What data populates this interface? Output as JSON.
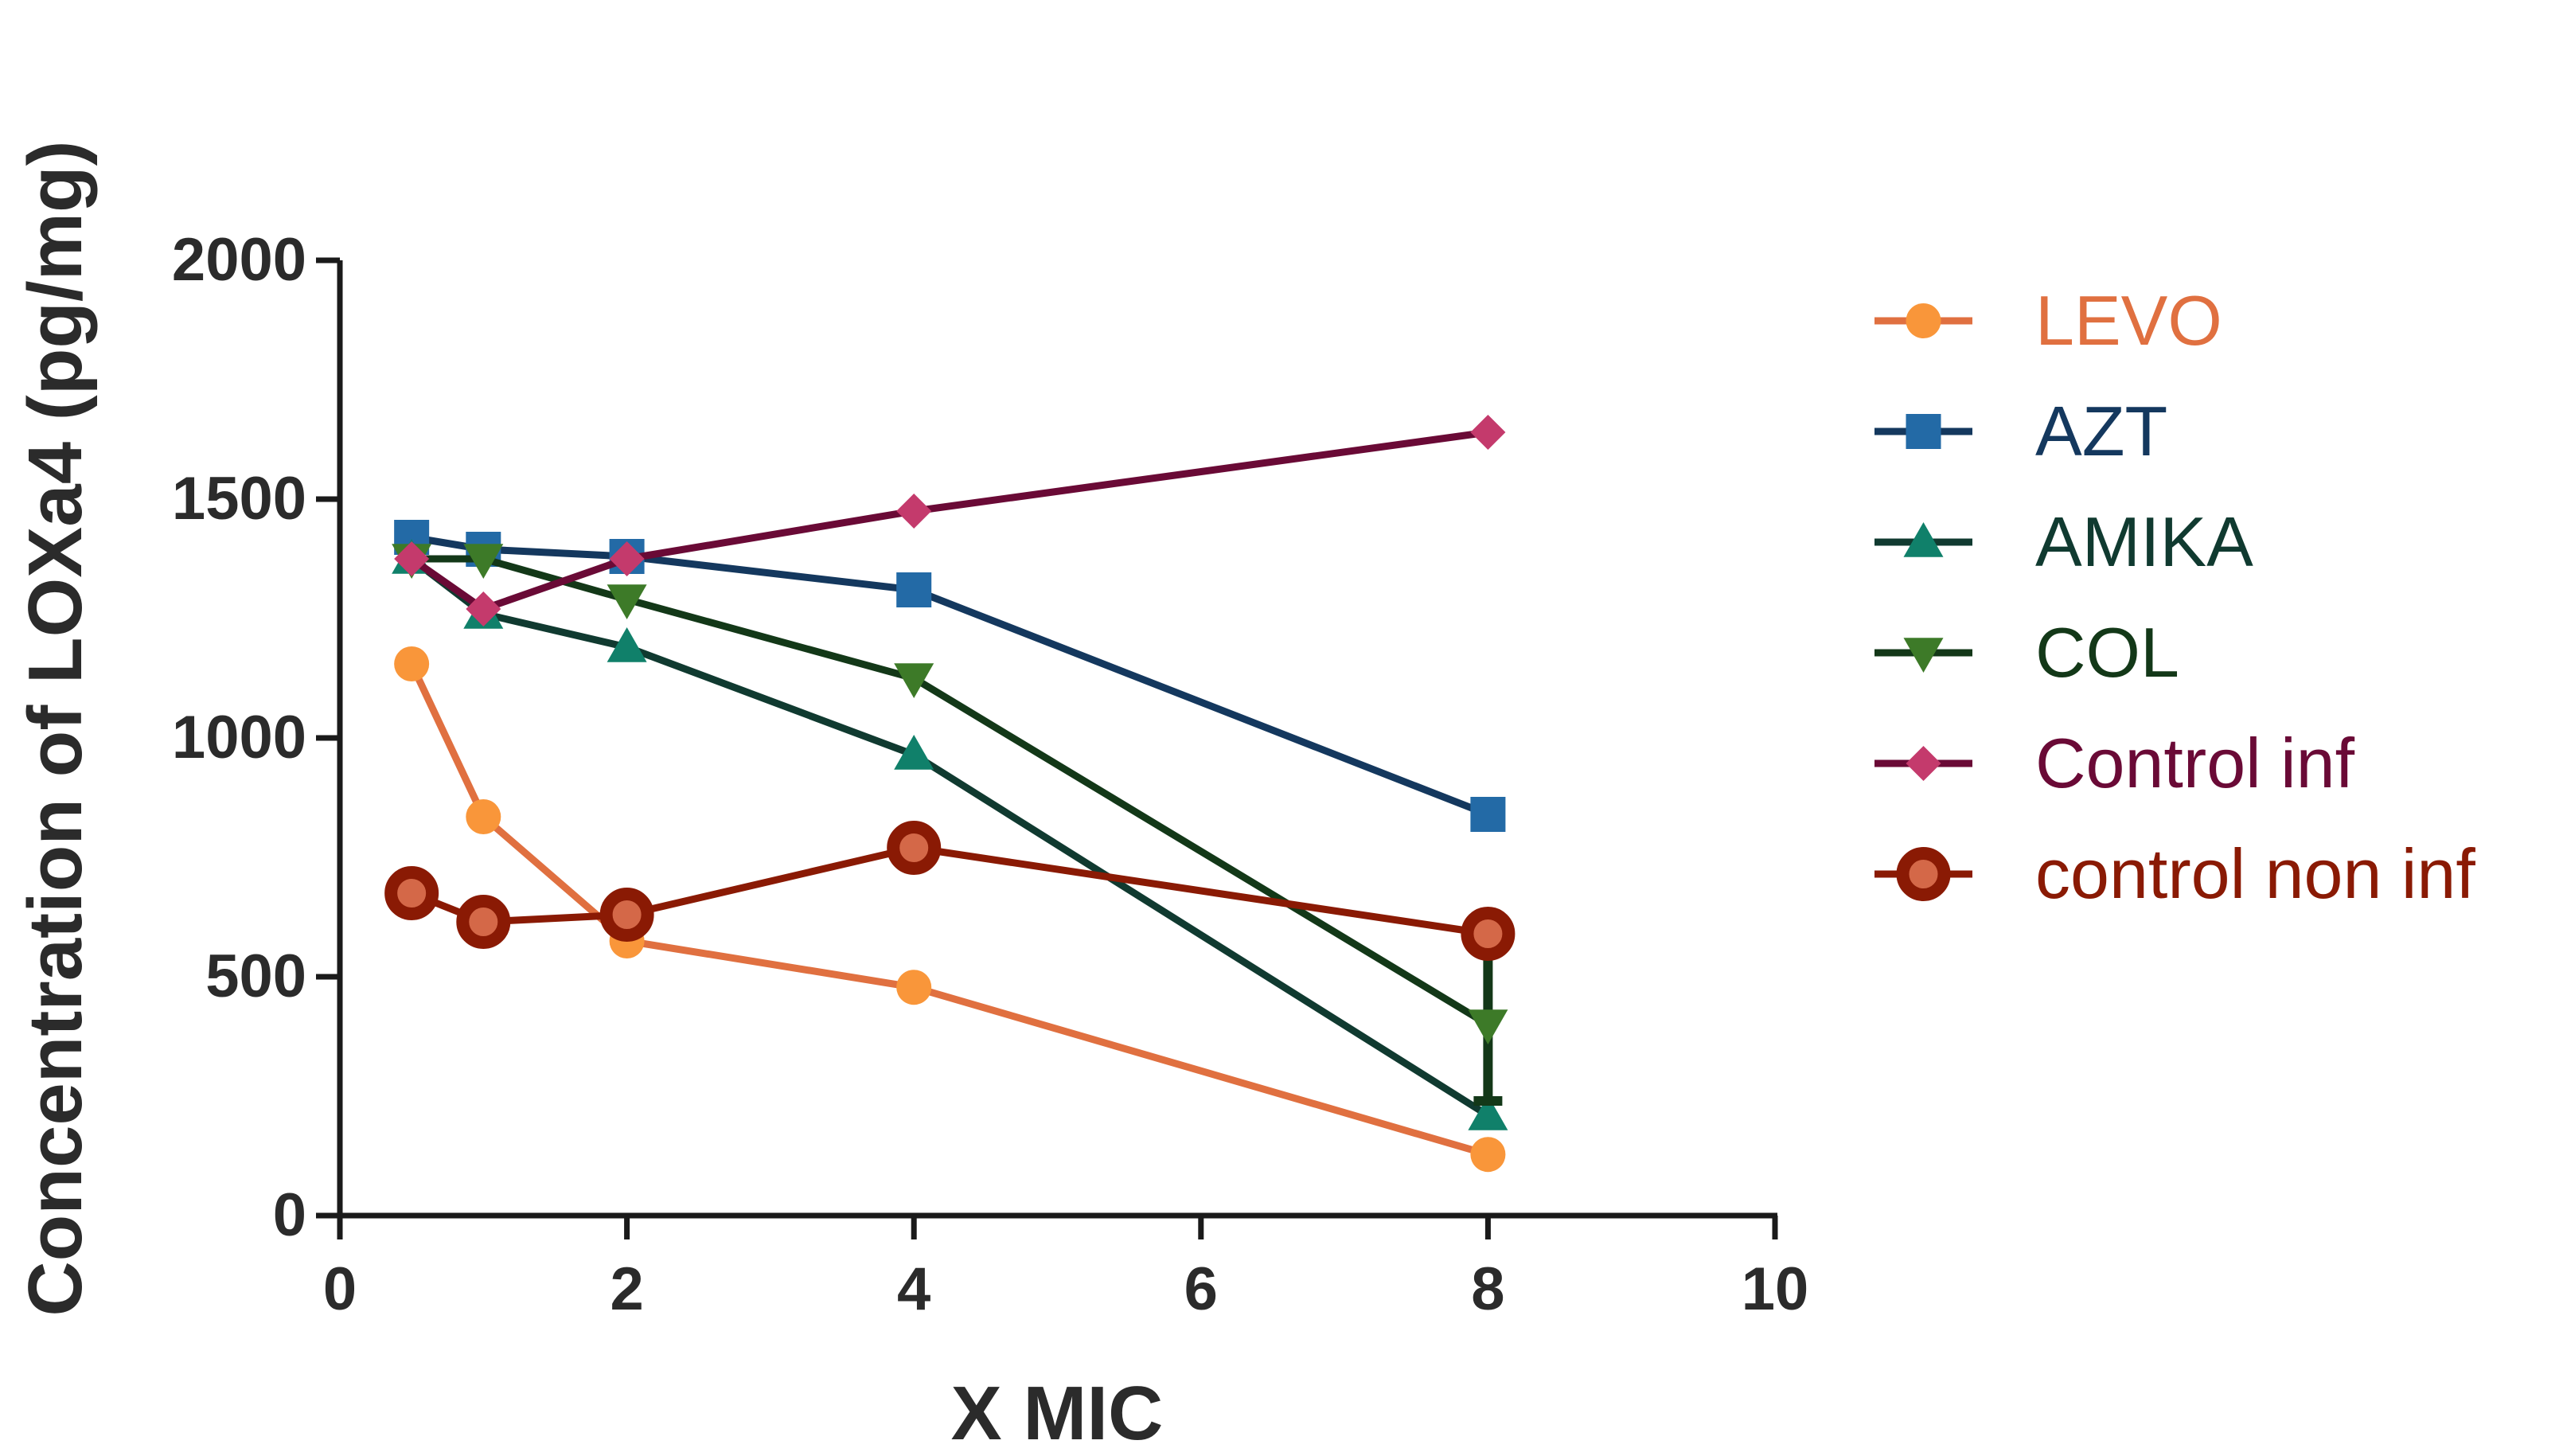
{
  "chart_data": {
    "type": "line",
    "title": "",
    "xlabel": "X MIC",
    "ylabel": "Concentration of LOXa4 (pg/mg)",
    "xlim": [
      0,
      10
    ],
    "ylim": [
      0,
      2000
    ],
    "x_ticks": [
      "0",
      "2",
      "4",
      "6",
      "8",
      "10"
    ],
    "y_ticks": [
      "0",
      "500",
      "1000",
      "1500",
      "2000"
    ],
    "x": [
      0.5,
      1,
      2,
      4,
      8
    ],
    "legend_position": "right",
    "series": [
      {
        "name": "LEVO",
        "values": [
          1155,
          835,
          575,
          478,
          128
        ],
        "color": "#e07040",
        "marker_color": "#f9963a",
        "marker": "circle",
        "error_bars": []
      },
      {
        "name": "AZT",
        "values": [
          1420,
          1395,
          1380,
          1310,
          840
        ],
        "color": "#14385e",
        "marker_color": "#236aa6",
        "marker": "square",
        "error_bars": []
      },
      {
        "name": "AMIKA",
        "values": [
          1375,
          1260,
          1190,
          965,
          210
        ],
        "color": "#103a30",
        "marker_color": "#10806a",
        "marker": "triangle-up",
        "error_bars": []
      },
      {
        "name": "COL",
        "values": [
          1375,
          1375,
          1290,
          1125,
          400
        ],
        "color": "#133818",
        "marker_color": "#3d7a28",
        "marker": "triangle-down",
        "error_bars": [
          {
            "x": 8,
            "low": 240,
            "high": 560
          }
        ]
      },
      {
        "name": "Control inf",
        "values": [
          1375,
          1270,
          1375,
          1475,
          1640
        ],
        "color": "#6a0a36",
        "marker_color": "#c43a6c",
        "marker": "diamond",
        "error_bars": []
      },
      {
        "name": "control non inf",
        "values": [
          675,
          615,
          630,
          770,
          590
        ],
        "color": "#8a1a04",
        "marker_color": "#d46848",
        "marker": "ring",
        "error_bars": []
      }
    ]
  }
}
